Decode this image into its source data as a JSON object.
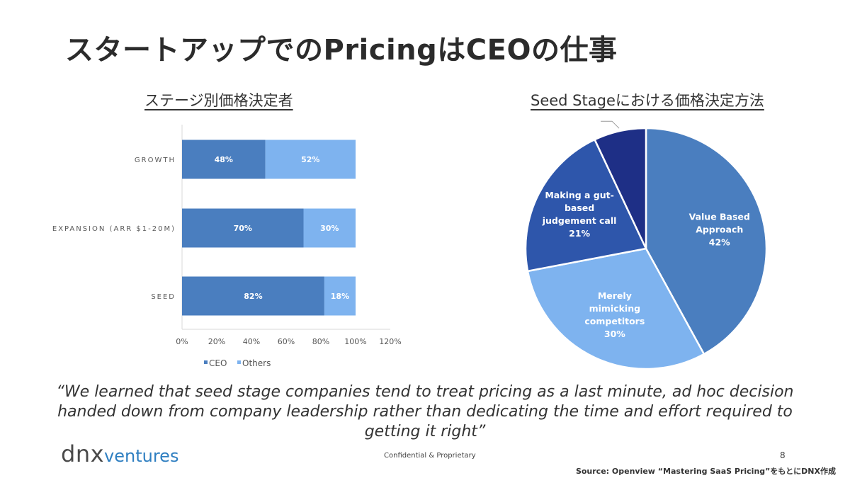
{
  "slide": {
    "title": "スタートアップでのPricingはCEOの仕事",
    "quote": "“We learned that seed stage companies tend to treat pricing as a last minute, ad hoc decision handed down from company leadership rather than dedicating the time and effort required to getting it right”",
    "logo": {
      "main": "dnx",
      "sub": "ventures"
    },
    "confidential": "Confidential & Proprietary",
    "page_number": "8",
    "source": "Source: Openview “Mastering SaaS Pricing”をもとにDNX作成"
  },
  "colors": {
    "ceo": "#4a7ebf",
    "others": "#7eb3ef",
    "slice_value": "#4a7ebf",
    "slice_mimic": "#7eb3ef",
    "slice_gut": "#2e56ab",
    "slice_other": "#1e2f86"
  },
  "chart_data": [
    {
      "type": "bar",
      "orientation": "horizontal",
      "stacked": true,
      "title": "ステージ別価格決定者",
      "categories": [
        "GROWTH",
        "EXPANSION (ARR $1-20M)",
        "SEED"
      ],
      "series": [
        {
          "name": "CEO",
          "values": [
            48,
            70,
            82
          ],
          "labels": [
            "48%",
            "70%",
            "82%"
          ]
        },
        {
          "name": "Others",
          "values": [
            52,
            30,
            18
          ],
          "labels": [
            "52%",
            "30%",
            "18%"
          ]
        }
      ],
      "xlim": [
        0,
        120
      ],
      "xticks": [
        "0%",
        "20%",
        "40%",
        "60%",
        "80%",
        "100%",
        "120%"
      ],
      "legend": "bottom"
    },
    {
      "type": "pie",
      "title": "Seed Stageにおける価格決定方法",
      "slices": [
        {
          "lines": [
            "Value Based",
            "Approach",
            "42%"
          ],
          "value": 42
        },
        {
          "lines": [
            "Merely",
            "mimicking",
            "competitors",
            "30%"
          ],
          "value": 30
        },
        {
          "lines": [
            "Making a gut-",
            "based",
            "judgement call",
            "21%"
          ],
          "value": 21
        },
        {
          "lines": [],
          "value": 7
        }
      ]
    }
  ]
}
